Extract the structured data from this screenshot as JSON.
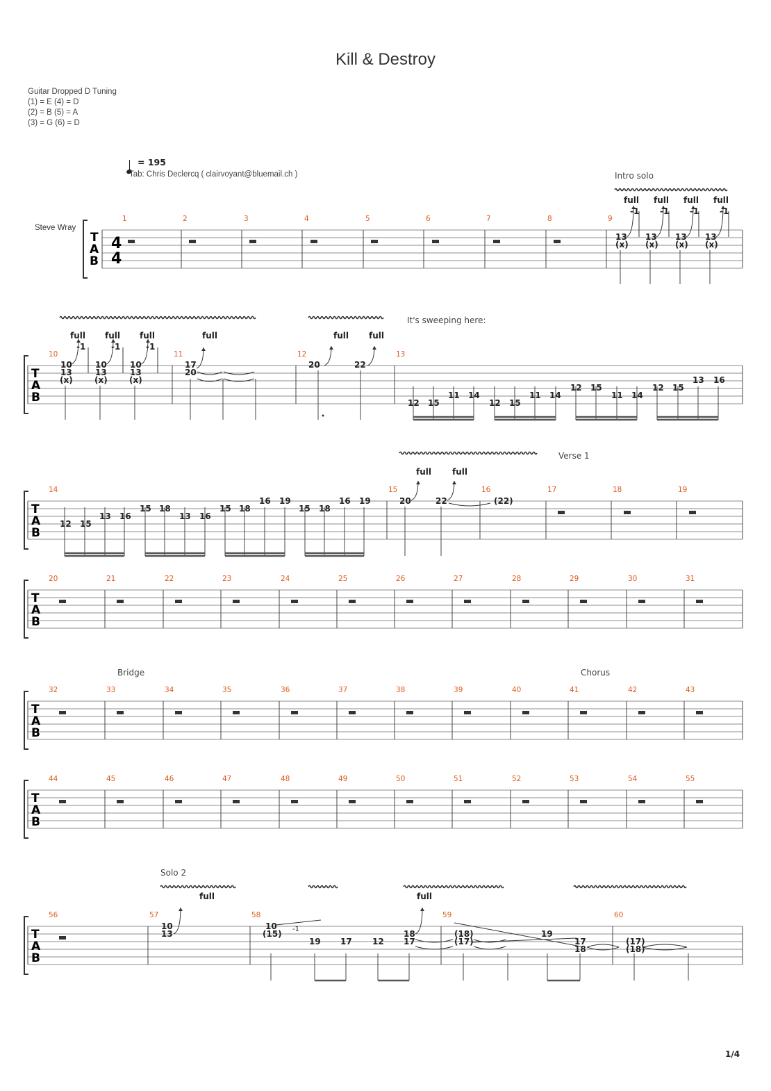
{
  "song": {
    "title": "Kill & Destroy",
    "tuning": [
      "Guitar Dropped D Tuning",
      "(1) = E (4) = D",
      "(2) = B (5) = A",
      "(3) = G (6) = D"
    ],
    "tempo_value": "= 195",
    "credit": "Tab: Chris Declercq ( clairvoyant@bluemail.ch )",
    "track_name": "Steve Wray",
    "time_signature": "4/4",
    "clef": [
      "T",
      "A",
      "B"
    ],
    "page_number": "1/4"
  },
  "section_labels": {
    "intro_solo": "Intro solo",
    "sweeping": "It's sweeping here:",
    "verse1": "Verse 1",
    "bridge": "Bridge",
    "chorus": "Chorus",
    "solo2": "Solo 2"
  },
  "bend_labels": {
    "full": "full",
    "minus_one": "-1"
  },
  "measure_numbers": {
    "system1": [
      "1",
      "2",
      "3",
      "4",
      "5",
      "6",
      "7",
      "8",
      "9"
    ],
    "system2": [
      "10",
      "11",
      "12",
      "13"
    ],
    "system3": [
      "14",
      "15",
      "16",
      "17",
      "18",
      "19"
    ],
    "system4": [
      "20",
      "21",
      "22",
      "23",
      "24",
      "25",
      "26",
      "27",
      "28",
      "29",
      "30",
      "31"
    ],
    "system5": [
      "32",
      "33",
      "34",
      "35",
      "36",
      "37",
      "38",
      "39",
      "40",
      "41",
      "42",
      "43"
    ],
    "system6": [
      "44",
      "45",
      "46",
      "47",
      "48",
      "49",
      "50",
      "51",
      "52",
      "53",
      "54",
      "55"
    ],
    "system7": [
      "56",
      "57",
      "58",
      "59",
      "60"
    ]
  },
  "frets": {
    "m9": [
      "13",
      "(x)"
    ],
    "m10": [
      "10",
      "13",
      "(x)"
    ],
    "m11": [
      "17",
      "20"
    ],
    "m12": [
      "20",
      "22"
    ],
    "m13": [
      "12",
      "15",
      "11",
      "14",
      "12",
      "15",
      "11",
      "14",
      "12",
      "15",
      "11",
      "14",
      "12",
      "15",
      "13",
      "16"
    ],
    "m14": [
      "12",
      "15",
      "13",
      "16",
      "15",
      "18",
      "13",
      "16",
      "15",
      "18",
      "16",
      "19",
      "15",
      "18",
      "16",
      "19"
    ],
    "m15": [
      "20",
      "22"
    ],
    "m16": [
      "(22)"
    ],
    "m57": [
      "10",
      "13"
    ],
    "m58": [
      "10",
      "(15)",
      "19",
      "17",
      "12",
      "18",
      "17"
    ],
    "m59": [
      "(18)",
      "(17)",
      "19",
      "17",
      "18"
    ],
    "m60": [
      "(17)",
      "(18)"
    ]
  }
}
